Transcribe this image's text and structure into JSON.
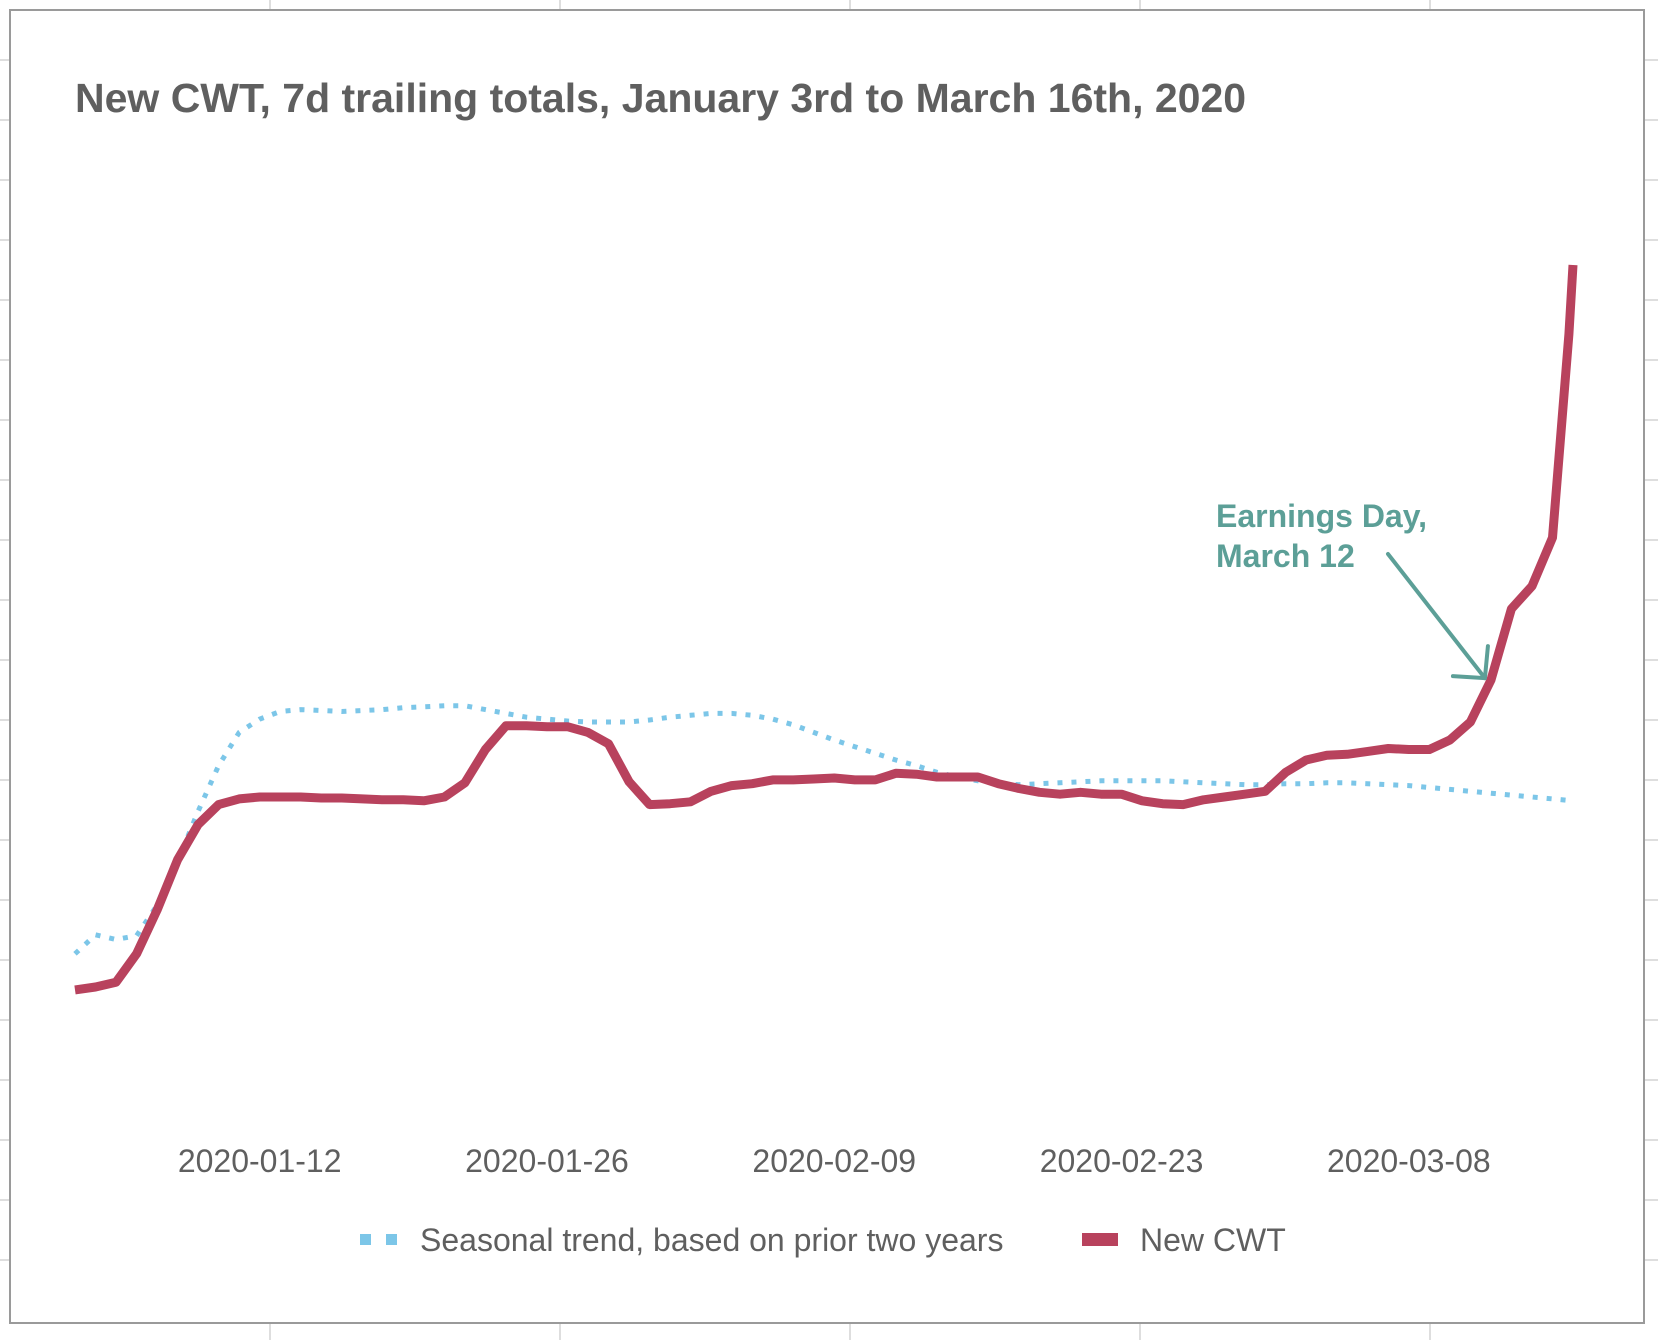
{
  "chart_data": {
    "type": "line",
    "title": "New CWT, 7d trailing totals, January 3rd to March 16th, 2020",
    "xlabel": "",
    "ylabel": "",
    "x_range": [
      "2020-01-03",
      "2020-03-16"
    ],
    "y_range": [
      0,
      100
    ],
    "y_axis_labels_shown": false,
    "grid": false,
    "legend_position": "bottom",
    "x_ticks": [
      "2020-01-12",
      "2020-01-26",
      "2020-02-09",
      "2020-02-23",
      "2020-03-08"
    ],
    "colors": {
      "seasonal": "#7cc6e8",
      "new_cwt": "#b8425d",
      "annotation": "#5c9f97",
      "title": "#5f5f5f"
    },
    "series": [
      {
        "name": "Seasonal trend, based on prior two years",
        "style": "dotted",
        "points": [
          [
            "2020-01-03",
            17.5
          ],
          [
            "2020-01-04",
            19.5
          ],
          [
            "2020-01-05",
            19.0
          ],
          [
            "2020-01-06",
            19.4
          ],
          [
            "2020-01-07",
            22.6
          ],
          [
            "2020-01-08",
            27.2
          ],
          [
            "2020-01-09",
            32.5
          ],
          [
            "2020-01-10",
            37.3
          ],
          [
            "2020-01-11",
            40.8
          ],
          [
            "2020-01-12",
            42.2
          ],
          [
            "2020-01-13",
            43.0
          ],
          [
            "2020-01-14",
            43.2
          ],
          [
            "2020-01-15",
            43.1
          ],
          [
            "2020-01-16",
            43.0
          ],
          [
            "2020-01-17",
            43.1
          ],
          [
            "2020-01-18",
            43.2
          ],
          [
            "2020-01-19",
            43.4
          ],
          [
            "2020-01-20",
            43.5
          ],
          [
            "2020-01-21",
            43.6
          ],
          [
            "2020-01-22",
            43.6
          ],
          [
            "2020-01-23",
            43.2
          ],
          [
            "2020-01-24",
            42.8
          ],
          [
            "2020-01-25",
            42.4
          ],
          [
            "2020-01-26",
            42.2
          ],
          [
            "2020-01-27",
            42.0
          ],
          [
            "2020-01-28",
            41.9
          ],
          [
            "2020-01-29",
            41.9
          ],
          [
            "2020-01-30",
            41.9
          ],
          [
            "2020-01-31",
            42.1
          ],
          [
            "2020-02-01",
            42.4
          ],
          [
            "2020-02-02",
            42.6
          ],
          [
            "2020-02-03",
            42.8
          ],
          [
            "2020-02-04",
            42.8
          ],
          [
            "2020-02-05",
            42.6
          ],
          [
            "2020-02-06",
            42.2
          ],
          [
            "2020-02-07",
            41.6
          ],
          [
            "2020-02-08",
            40.8
          ],
          [
            "2020-02-09",
            40.0
          ],
          [
            "2020-02-10",
            39.3
          ],
          [
            "2020-02-11",
            38.6
          ],
          [
            "2020-02-12",
            37.9
          ],
          [
            "2020-02-13",
            37.3
          ],
          [
            "2020-02-14",
            36.6
          ],
          [
            "2020-02-15",
            36.1
          ],
          [
            "2020-02-16",
            35.7
          ],
          [
            "2020-02-17",
            35.4
          ],
          [
            "2020-02-18",
            35.3
          ],
          [
            "2020-02-19",
            35.4
          ],
          [
            "2020-02-20",
            35.5
          ],
          [
            "2020-02-21",
            35.6
          ],
          [
            "2020-02-22",
            35.7
          ],
          [
            "2020-02-23",
            35.7
          ],
          [
            "2020-02-24",
            35.7
          ],
          [
            "2020-02-25",
            35.7
          ],
          [
            "2020-02-26",
            35.6
          ],
          [
            "2020-02-27",
            35.5
          ],
          [
            "2020-02-28",
            35.4
          ],
          [
            "2020-02-29",
            35.3
          ],
          [
            "2020-03-01",
            35.3
          ],
          [
            "2020-03-02",
            35.4
          ],
          [
            "2020-03-03",
            35.4
          ],
          [
            "2020-03-04",
            35.5
          ],
          [
            "2020-03-05",
            35.5
          ],
          [
            "2020-03-06",
            35.4
          ],
          [
            "2020-03-07",
            35.3
          ],
          [
            "2020-03-08",
            35.2
          ],
          [
            "2020-03-09",
            35.0
          ],
          [
            "2020-03-10",
            34.8
          ],
          [
            "2020-03-11",
            34.6
          ],
          [
            "2020-03-12",
            34.4
          ],
          [
            "2020-03-13",
            34.2
          ],
          [
            "2020-03-14",
            34.0
          ],
          [
            "2020-03-15",
            33.8
          ],
          [
            "2020-03-16",
            33.6
          ]
        ]
      },
      {
        "name": "New CWT",
        "style": "solid",
        "points": [
          [
            "2020-01-03",
            13.7
          ],
          [
            "2020-01-04",
            14.0
          ],
          [
            "2020-01-05",
            14.5
          ],
          [
            "2020-01-06",
            17.5
          ],
          [
            "2020-01-07",
            22.1
          ],
          [
            "2020-01-08",
            27.4
          ],
          [
            "2020-01-09",
            31.1
          ],
          [
            "2020-01-10",
            33.2
          ],
          [
            "2020-01-11",
            33.8
          ],
          [
            "2020-01-12",
            34.0
          ],
          [
            "2020-01-13",
            34.0
          ],
          [
            "2020-01-14",
            34.0
          ],
          [
            "2020-01-15",
            33.9
          ],
          [
            "2020-01-16",
            33.9
          ],
          [
            "2020-01-17",
            33.8
          ],
          [
            "2020-01-18",
            33.7
          ],
          [
            "2020-01-19",
            33.7
          ],
          [
            "2020-01-20",
            33.6
          ],
          [
            "2020-01-21",
            34.0
          ],
          [
            "2020-01-22",
            35.5
          ],
          [
            "2020-01-23",
            39.0
          ],
          [
            "2020-01-24",
            41.5
          ],
          [
            "2020-01-25",
            41.5
          ],
          [
            "2020-01-26",
            41.4
          ],
          [
            "2020-01-27",
            41.4
          ],
          [
            "2020-01-28",
            40.8
          ],
          [
            "2020-01-29",
            39.6
          ],
          [
            "2020-01-30",
            35.6
          ],
          [
            "2020-01-31",
            33.2
          ],
          [
            "2020-02-01",
            33.3
          ],
          [
            "2020-02-02",
            33.5
          ],
          [
            "2020-02-03",
            34.6
          ],
          [
            "2020-02-04",
            35.2
          ],
          [
            "2020-02-05",
            35.4
          ],
          [
            "2020-02-06",
            35.8
          ],
          [
            "2020-02-07",
            35.8
          ],
          [
            "2020-02-08",
            35.9
          ],
          [
            "2020-02-09",
            36.0
          ],
          [
            "2020-02-10",
            35.8
          ],
          [
            "2020-02-11",
            35.8
          ],
          [
            "2020-02-12",
            36.5
          ],
          [
            "2020-02-13",
            36.4
          ],
          [
            "2020-02-14",
            36.1
          ],
          [
            "2020-02-15",
            36.1
          ],
          [
            "2020-02-16",
            36.1
          ],
          [
            "2020-02-17",
            35.4
          ],
          [
            "2020-02-18",
            34.9
          ],
          [
            "2020-02-19",
            34.5
          ],
          [
            "2020-02-20",
            34.3
          ],
          [
            "2020-02-21",
            34.5
          ],
          [
            "2020-02-22",
            34.3
          ],
          [
            "2020-02-23",
            34.3
          ],
          [
            "2020-02-24",
            33.6
          ],
          [
            "2020-02-25",
            33.3
          ],
          [
            "2020-02-26",
            33.2
          ],
          [
            "2020-02-27",
            33.7
          ],
          [
            "2020-02-28",
            34.0
          ],
          [
            "2020-02-29",
            34.3
          ],
          [
            "2020-03-01",
            34.6
          ],
          [
            "2020-03-02",
            36.6
          ],
          [
            "2020-03-03",
            37.9
          ],
          [
            "2020-03-04",
            38.4
          ],
          [
            "2020-03-05",
            38.5
          ],
          [
            "2020-03-06",
            38.8
          ],
          [
            "2020-03-07",
            39.1
          ],
          [
            "2020-03-08",
            39.0
          ],
          [
            "2020-03-09",
            39.0
          ],
          [
            "2020-03-10",
            40.0
          ],
          [
            "2020-03-11",
            41.9
          ],
          [
            "2020-03-12",
            46.3
          ],
          [
            "2020-03-13",
            53.8
          ],
          [
            "2020-03-14",
            56.2
          ],
          [
            "2020-03-15",
            61.3
          ],
          [
            "2020-03-15.8",
            82.7
          ],
          [
            "2020-03-16",
            90.0
          ]
        ]
      }
    ],
    "annotations": [
      {
        "text_lines": [
          "Earnings Day,",
          "March 12"
        ],
        "points_to": "2020-03-12"
      }
    ]
  }
}
